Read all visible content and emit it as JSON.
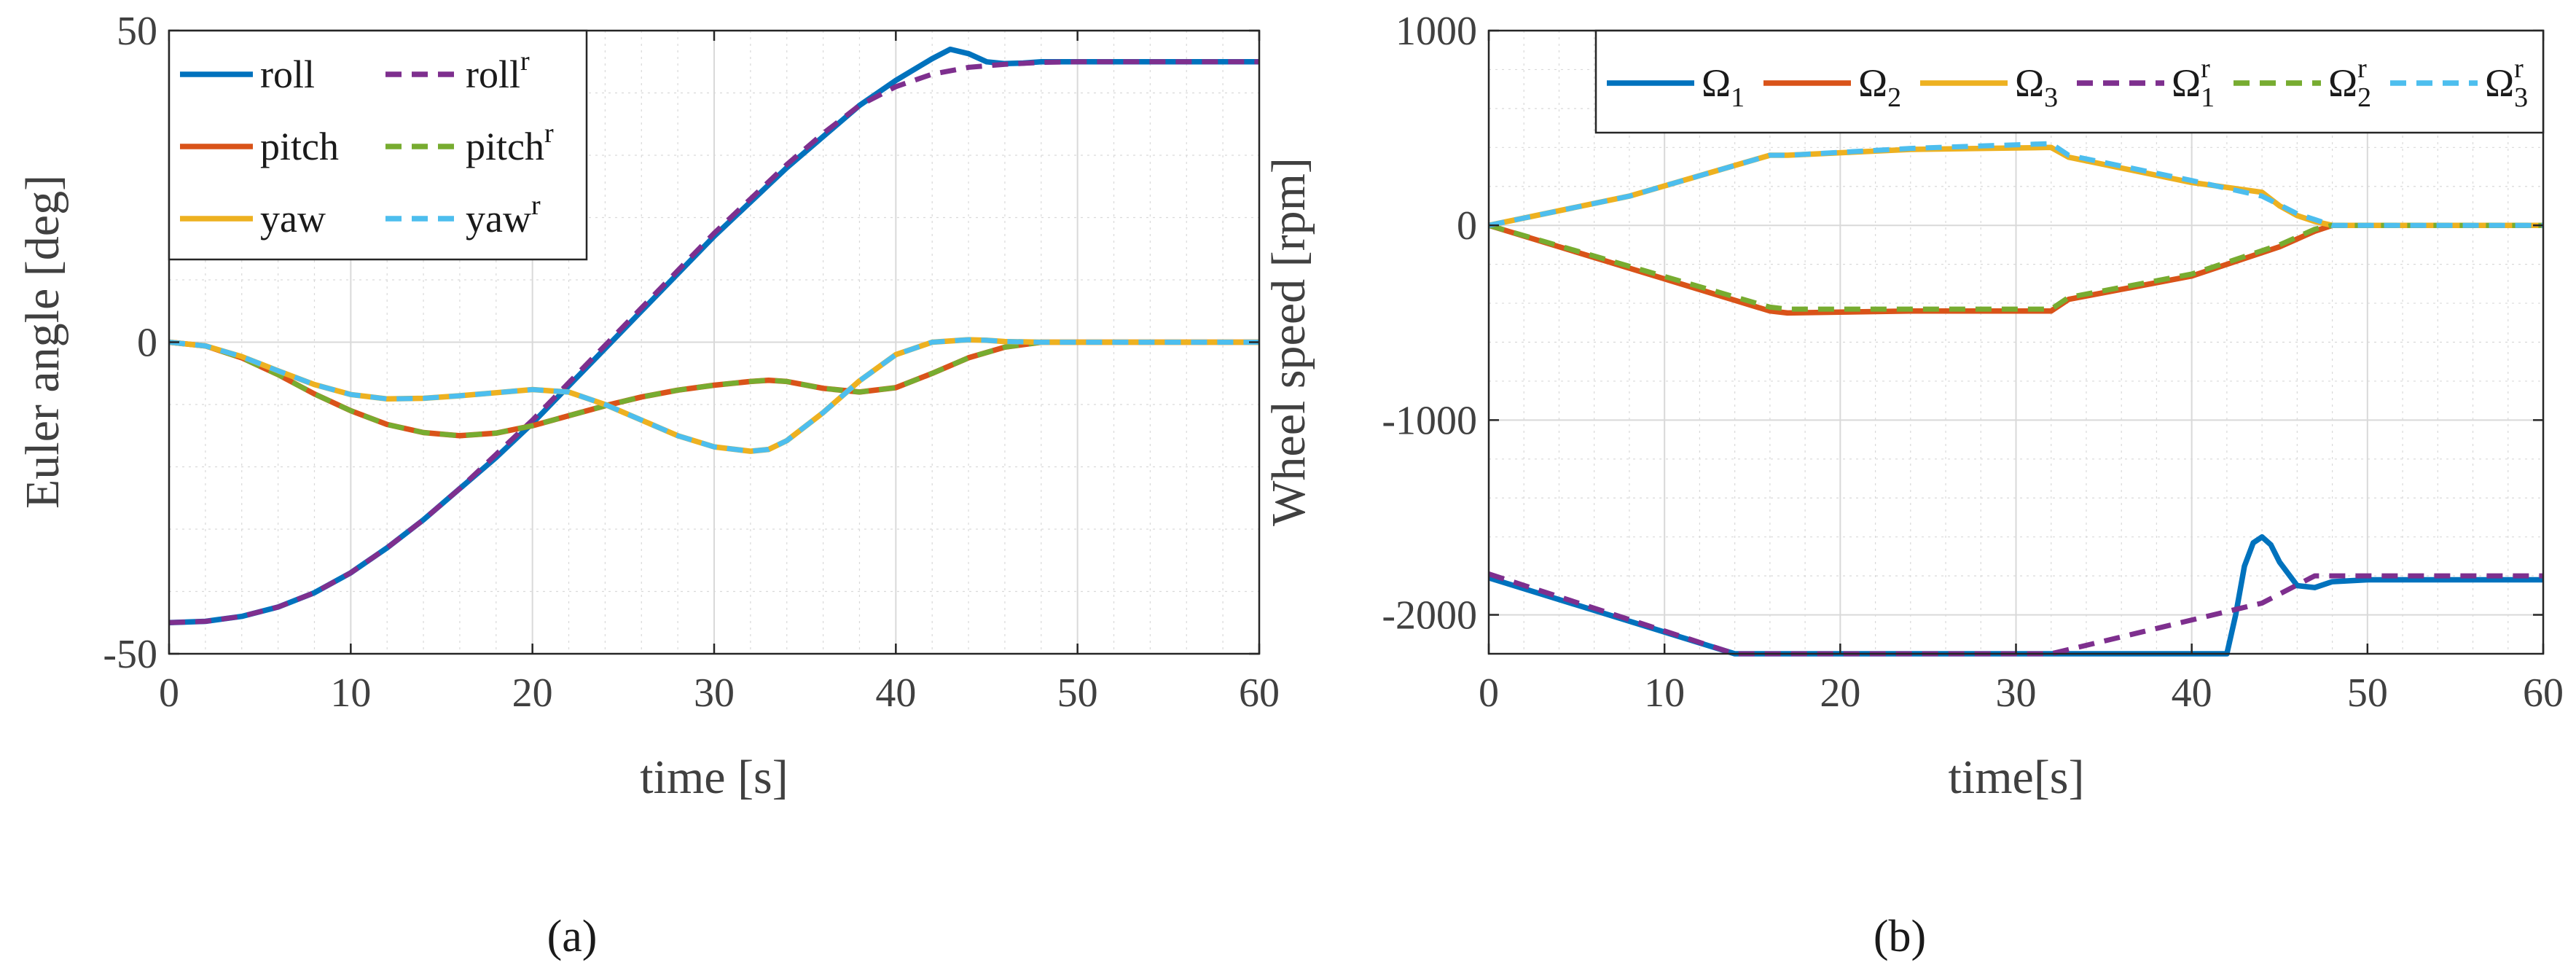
{
  "chart_data": [
    {
      "type": "line",
      "panel_label": "(a)",
      "xlabel": "time [s]",
      "ylabel": "Euler angle [deg]",
      "xlim": [
        0,
        60
      ],
      "ylim": [
        -50,
        50
      ],
      "xticks": [
        0,
        10,
        20,
        30,
        40,
        50,
        60
      ],
      "xtick_labels": [
        "0",
        "10",
        "20",
        "30",
        "40",
        "50",
        "60"
      ],
      "yticks": [
        -50,
        0,
        50
      ],
      "ytick_labels": [
        "-50",
        "0",
        "50"
      ],
      "grid": true,
      "legend_location": "top-left",
      "series": [
        {
          "name": "roll",
          "sup": "",
          "style": "solid",
          "color": "#0072BD",
          "x": [
            0,
            2,
            4,
            6,
            8,
            10,
            12,
            14,
            16,
            18,
            20,
            22,
            24,
            26,
            28,
            30,
            32,
            34,
            36,
            38,
            40,
            42,
            43,
            44,
            45,
            46,
            47,
            48,
            50,
            55,
            60
          ],
          "y": [
            -45,
            -44.8,
            -44,
            -42.5,
            -40.2,
            -37,
            -33,
            -28.5,
            -23.5,
            -18.5,
            -13,
            -7,
            -1,
            5,
            11,
            17,
            22.5,
            28,
            33,
            38,
            42,
            45.5,
            47,
            46.3,
            45,
            44.7,
            44.8,
            45,
            45,
            45,
            45
          ]
        },
        {
          "name": "roll",
          "sup": "r",
          "style": "dashed",
          "color": "#7E2F8E",
          "x": [
            0,
            2,
            4,
            6,
            8,
            10,
            12,
            14,
            16,
            18,
            20,
            22,
            24,
            26,
            28,
            30,
            32,
            34,
            36,
            38,
            40,
            42,
            44,
            46,
            48,
            50,
            55,
            60
          ],
          "y": [
            -45,
            -44.8,
            -44,
            -42.5,
            -40.2,
            -37,
            -33,
            -28.5,
            -23.5,
            -18,
            -12.5,
            -6.5,
            -0.5,
            5.5,
            11.5,
            17.5,
            23,
            28.5,
            33.5,
            38,
            41,
            43,
            44.1,
            44.6,
            44.9,
            45,
            45,
            45
          ]
        },
        {
          "name": "pitch",
          "sup": "",
          "style": "solid",
          "color": "#D95319",
          "x": [
            0,
            2,
            4,
            6,
            8,
            10,
            12,
            14,
            16,
            18,
            20,
            22,
            24,
            26,
            28,
            30,
            32,
            33,
            34,
            36,
            38,
            40,
            42,
            44,
            46,
            48,
            50,
            55,
            60
          ],
          "y": [
            0,
            -0.6,
            -2.5,
            -5.2,
            -8.3,
            -11,
            -13.2,
            -14.5,
            -15,
            -14.6,
            -13.4,
            -11.8,
            -10.2,
            -8.8,
            -7.7,
            -6.9,
            -6.3,
            -6.1,
            -6.3,
            -7.4,
            -8,
            -7.3,
            -5,
            -2.5,
            -0.8,
            0,
            0,
            0,
            0
          ]
        },
        {
          "name": "pitch",
          "sup": "r",
          "style": "dashed",
          "color": "#77AC30",
          "x": [
            0,
            2,
            4,
            6,
            8,
            10,
            12,
            14,
            16,
            18,
            20,
            22,
            24,
            26,
            28,
            30,
            32,
            33,
            34,
            36,
            38,
            40,
            42,
            44,
            46,
            48,
            50,
            55,
            60
          ],
          "y": [
            0,
            -0.6,
            -2.5,
            -5.2,
            -8.3,
            -11,
            -13.2,
            -14.5,
            -15,
            -14.6,
            -13.4,
            -11.8,
            -10.2,
            -8.8,
            -7.7,
            -6.9,
            -6.3,
            -6.1,
            -6.3,
            -7.4,
            -8,
            -7.3,
            -5,
            -2.5,
            -0.8,
            0,
            0,
            0,
            0
          ]
        },
        {
          "name": "yaw",
          "sup": "",
          "style": "solid",
          "color": "#EDB120",
          "x": [
            0,
            2,
            4,
            6,
            8,
            10,
            12,
            14,
            16,
            18,
            20,
            22,
            24,
            26,
            28,
            30,
            32,
            33,
            34,
            36,
            38,
            40,
            42,
            44,
            45,
            46,
            48,
            50,
            55,
            60
          ],
          "y": [
            0,
            -0.6,
            -2.3,
            -4.6,
            -6.8,
            -8.4,
            -9.1,
            -9,
            -8.6,
            -8.1,
            -7.6,
            -8,
            -10,
            -12.5,
            -15,
            -16.8,
            -17.5,
            -17.2,
            -15.8,
            -11.3,
            -6.2,
            -2,
            0,
            0.4,
            0.3,
            0.1,
            0,
            0,
            0,
            0
          ]
        },
        {
          "name": "yaw",
          "sup": "r",
          "style": "dashed",
          "color": "#4DBEEE",
          "x": [
            0,
            2,
            4,
            6,
            8,
            10,
            12,
            14,
            16,
            18,
            20,
            22,
            24,
            26,
            28,
            30,
            32,
            33,
            34,
            36,
            38,
            40,
            42,
            44,
            45,
            46,
            48,
            50,
            55,
            60
          ],
          "y": [
            0,
            -0.6,
            -2.3,
            -4.6,
            -6.8,
            -8.4,
            -9.1,
            -9,
            -8.6,
            -8.1,
            -7.6,
            -8,
            -10,
            -12.5,
            -15,
            -16.8,
            -17.5,
            -17.2,
            -15.8,
            -11.3,
            -6.2,
            -2,
            0,
            0.4,
            0.3,
            0.1,
            0,
            0,
            0,
            0
          ]
        }
      ]
    },
    {
      "type": "line",
      "panel_label": "(b)",
      "xlabel": "time[s]",
      "ylabel": "Wheel speed [rpm]",
      "xlim": [
        0,
        60
      ],
      "ylim": [
        -2200,
        1000
      ],
      "xticks": [
        0,
        10,
        20,
        30,
        40,
        50,
        60
      ],
      "xtick_labels": [
        "0",
        "10",
        "20",
        "30",
        "40",
        "50",
        "60"
      ],
      "yticks": [
        -2000,
        -1000,
        0,
        1000
      ],
      "ytick_labels": [
        "-2000",
        "-1000",
        "0",
        "1000"
      ],
      "grid": true,
      "legend_location": "top-right",
      "series": [
        {
          "name": "Ω",
          "sub": "1",
          "sup": "",
          "style": "solid",
          "color": "#0072BD",
          "x": [
            0,
            14,
            42,
            42.5,
            43,
            43.5,
            44,
            44.5,
            45,
            46,
            47,
            48,
            50,
            55,
            60
          ],
          "y": [
            -1810,
            -2200,
            -2200,
            -2000,
            -1750,
            -1630,
            -1600,
            -1640,
            -1730,
            -1850,
            -1860,
            -1830,
            -1820,
            -1820,
            -1820
          ]
        },
        {
          "name": "Ω",
          "sub": "2",
          "sup": "",
          "style": "solid",
          "color": "#D95319",
          "x": [
            0,
            16,
            17,
            24,
            32,
            33,
            40,
            45,
            47,
            48,
            50,
            60
          ],
          "y": [
            0,
            -440,
            -450,
            -440,
            -440,
            -380,
            -260,
            -110,
            -30,
            0,
            0,
            0
          ]
        },
        {
          "name": "Ω",
          "sub": "3",
          "sup": "",
          "style": "solid",
          "color": "#EDB120",
          "x": [
            0,
            8,
            16,
            17,
            24,
            32,
            33,
            40,
            44,
            45,
            46,
            47,
            48,
            50,
            60
          ],
          "y": [
            0,
            150,
            360,
            360,
            390,
            400,
            350,
            220,
            170,
            100,
            50,
            20,
            0,
            0,
            0
          ]
        },
        {
          "name": "Ω",
          "sub": "1",
          "sup": "r",
          "style": "dashed",
          "color": "#7E2F8E",
          "x": [
            0,
            14,
            32,
            44,
            47,
            48,
            50,
            60
          ],
          "y": [
            -1790,
            -2200,
            -2200,
            -1940,
            -1800,
            -1800,
            -1800,
            -1800
          ]
        },
        {
          "name": "Ω",
          "sub": "2",
          "sup": "r",
          "style": "dashed",
          "color": "#77AC30",
          "x": [
            0,
            16,
            17,
            24,
            32,
            33,
            40,
            45,
            47,
            48,
            50,
            60
          ],
          "y": [
            0,
            -420,
            -430,
            -430,
            -430,
            -370,
            -250,
            -100,
            -20,
            0,
            0,
            0
          ]
        },
        {
          "name": "Ω",
          "sub": "3",
          "sup": "r",
          "style": "dashed",
          "color": "#4DBEEE",
          "x": [
            0,
            8,
            16,
            17,
            24,
            32,
            33,
            40,
            44,
            46,
            48,
            50,
            60
          ],
          "y": [
            0,
            150,
            360,
            360,
            395,
            420,
            360,
            230,
            150,
            60,
            0,
            0,
            0
          ]
        }
      ]
    }
  ]
}
